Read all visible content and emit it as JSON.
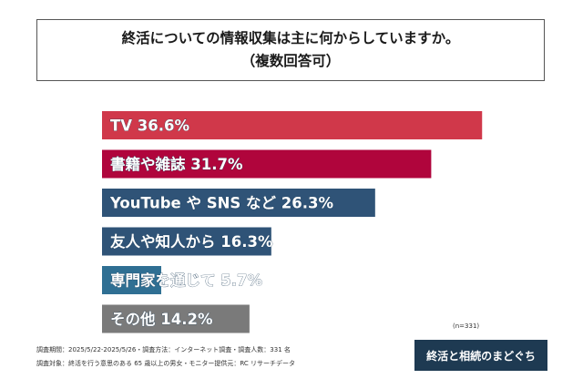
{
  "title": {
    "line1": "終活についての情報収集は主に何からしていますか。",
    "line2": "（複数回答可）"
  },
  "chart_data": {
    "type": "bar",
    "orientation": "horizontal",
    "categories": [
      "TV",
      "書籍や雑誌",
      "YouTube や SNS など",
      "友人や知人から",
      "専門家を通じて",
      "その他"
    ],
    "values": [
      36.6,
      31.7,
      26.3,
      16.3,
      5.7,
      14.2
    ],
    "unit": "%",
    "colors": [
      "#d0384a",
      "#b0053c",
      "#2f5377",
      "#2f5377",
      "#2f6f93",
      "#7a7a7a"
    ],
    "grid": false,
    "legend": "none"
  },
  "sample_note": "(n=331)",
  "notes": {
    "period": "調査期間：2025/5/22-2025/5/26・調査方法：インターネット調査・調査人数：331 名",
    "target": "調査対象：終活を行う意思のある 65 歳以上の男女・モニター提供元：RC リサーチデータ"
  },
  "logo_text": "終活と相続のまどぐち"
}
